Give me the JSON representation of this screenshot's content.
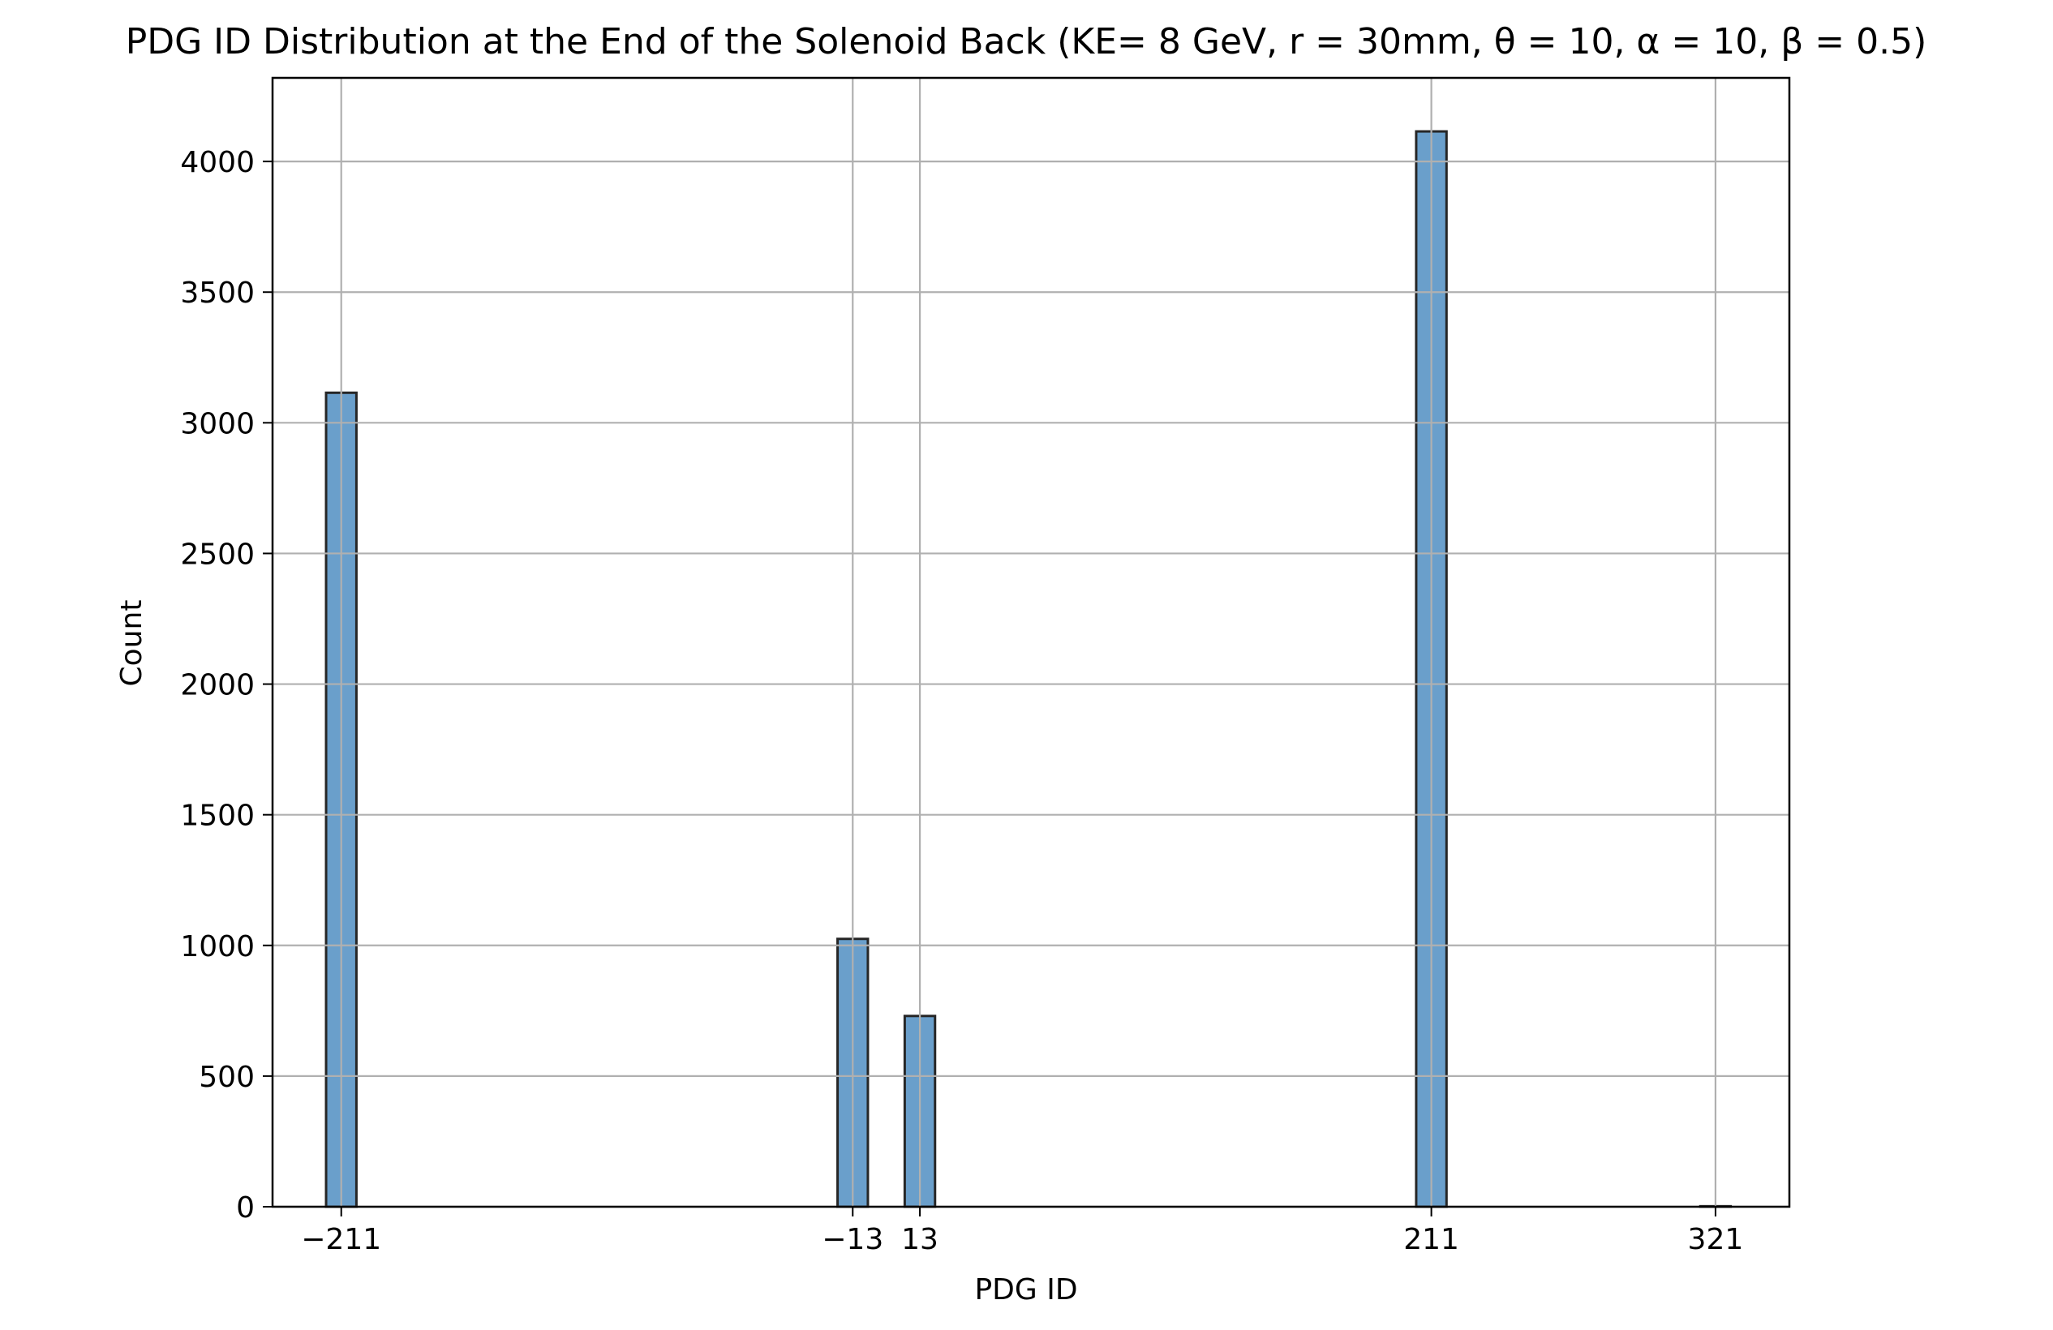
{
  "chart_data": {
    "type": "bar",
    "title": "PDG ID Distribution at the End of the Solenoid Back (KE= 8 GeV, r = 30mm, θ = 10, α = 10, β = 0.5)",
    "xlabel": "PDG ID",
    "ylabel": "Count",
    "xlim": [
      -237.6,
      349.6
    ],
    "ylim": [
      0,
      4320
    ],
    "x_ticks": [
      -211,
      -13,
      13,
      211,
      321
    ],
    "x_tick_labels": [
      "−211",
      "−13",
      "13",
      "211",
      "321"
    ],
    "y_ticks": [
      0,
      500,
      1000,
      1500,
      2000,
      2500,
      3000,
      3500,
      4000
    ],
    "y_tick_labels": [
      "0",
      "500",
      "1000",
      "1500",
      "2000",
      "2500",
      "3000",
      "3500",
      "4000"
    ],
    "grid": true,
    "bar_color": "#6a9fcb",
    "bar_edge_color": "#262626",
    "grid_color": "#b0b0b0",
    "bins": [
      {
        "x": -211,
        "value": 3115
      },
      {
        "x": -13,
        "value": 1025
      },
      {
        "x": 13,
        "value": 730
      },
      {
        "x": 211,
        "value": 4115
      },
      {
        "x": 321,
        "value": 2
      }
    ]
  }
}
